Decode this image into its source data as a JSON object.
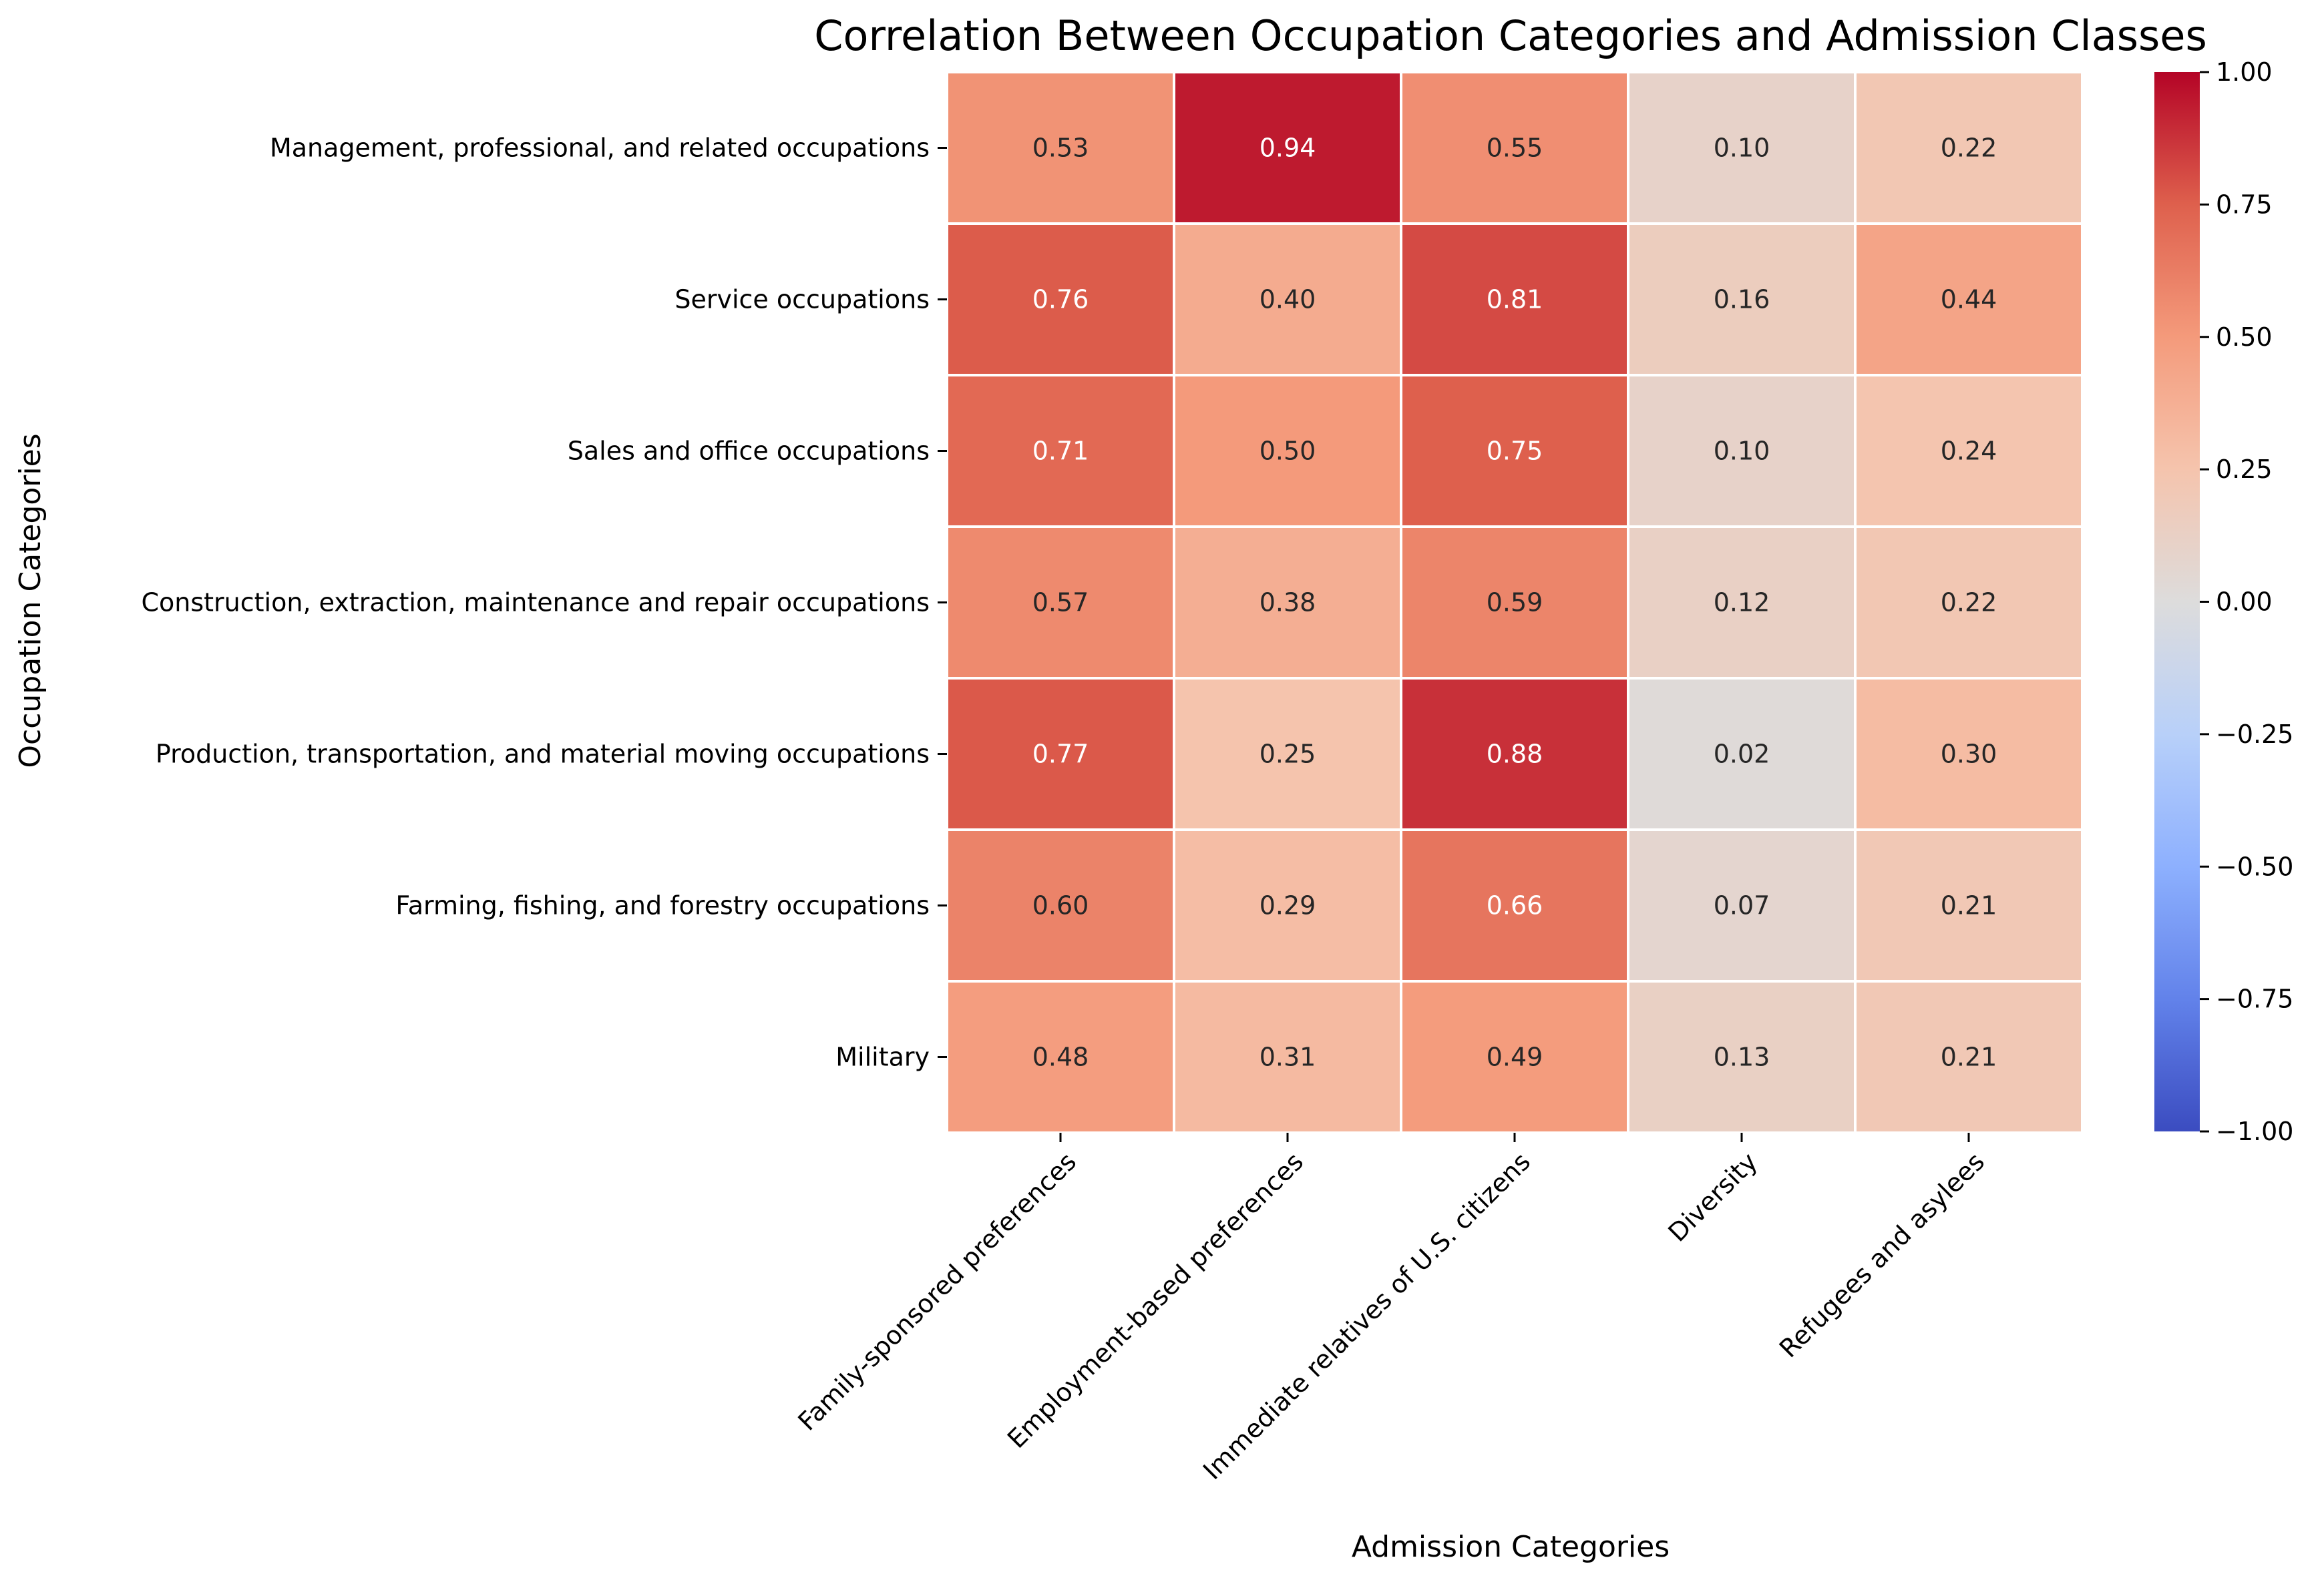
{
  "chart_data": {
    "type": "heatmap",
    "title": "Correlation Between Occupation Categories and Admission Classes",
    "xlabel": "Admission Categories",
    "ylabel": "Occupation Categories",
    "columns": [
      "Family-sponsored preferences",
      "Employment-based preferences",
      "Immediate relatives of U.S. citizens",
      "Diversity",
      "Refugees and asylees"
    ],
    "rows": [
      "Management, professional, and related occupations",
      "Service occupations",
      "Sales and office occupations",
      "Construction, extraction, maintenance and repair occupations",
      "Production, transportation, and material moving occupations",
      "Farming, fishing, and forestry occupations",
      "Military"
    ],
    "values": [
      [
        0.53,
        0.94,
        0.55,
        0.1,
        0.22
      ],
      [
        0.76,
        0.4,
        0.81,
        0.16,
        0.44
      ],
      [
        0.71,
        0.5,
        0.75,
        0.1,
        0.24
      ],
      [
        0.57,
        0.38,
        0.59,
        0.12,
        0.22
      ],
      [
        0.77,
        0.25,
        0.88,
        0.02,
        0.3
      ],
      [
        0.6,
        0.29,
        0.66,
        0.07,
        0.21
      ],
      [
        0.48,
        0.31,
        0.49,
        0.13,
        0.21
      ]
    ],
    "value_format": "0.00",
    "colormap": "coolwarm",
    "color_range": [
      -1.0,
      1.0
    ],
    "colorbar_ticks": [
      "1.00",
      "0.75",
      "0.50",
      "0.25",
      "0.00",
      "−0.25",
      "−0.50",
      "−0.75",
      "−1.00"
    ],
    "colorbar_tick_values": [
      1.0,
      0.75,
      0.5,
      0.25,
      0.0,
      -0.25,
      -0.5,
      -0.75,
      -1.0
    ],
    "legend": "colorbar-right",
    "grid": false
  }
}
